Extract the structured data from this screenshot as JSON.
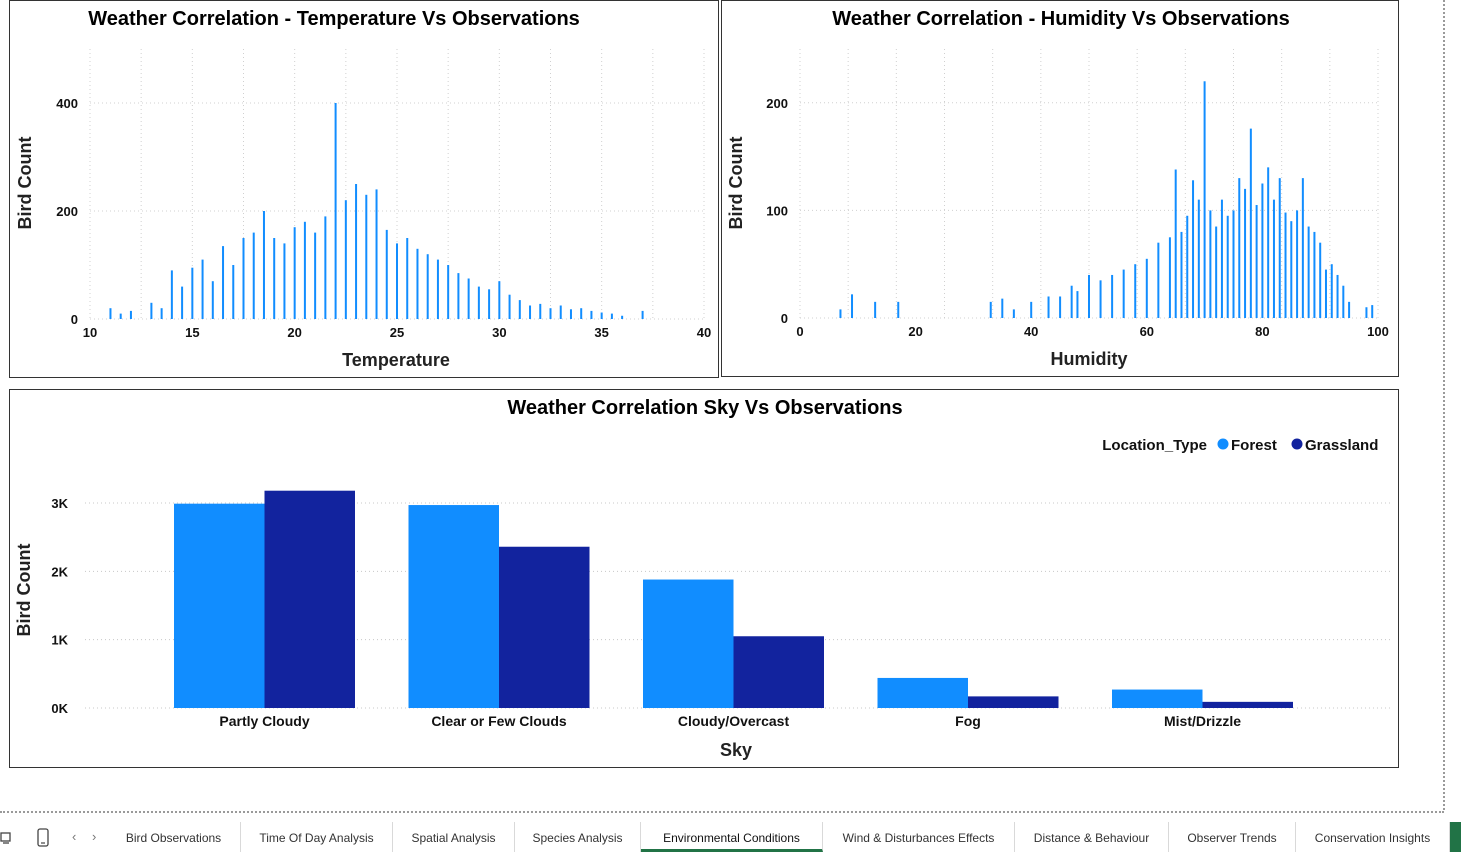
{
  "charts": {
    "temp": {
      "title": "Weather Correlation - Temperature Vs Observations",
      "xlabel": "Temperature",
      "ylabel": "Bird Count"
    },
    "humidity": {
      "title": "Weather Correlation - Humidity Vs Observations",
      "xlabel": "Humidity",
      "ylabel": "Bird Count"
    },
    "sky": {
      "title": "Weather Correlation Sky Vs Observations",
      "xlabel": "Sky",
      "ylabel": "Bird Count",
      "legend_title": "Location_Type"
    }
  },
  "chart_data": [
    {
      "type": "bar",
      "title": "Weather Correlation - Temperature Vs Observations",
      "xlabel": "Temperature",
      "ylabel": "Bird Count",
      "xlim": [
        10,
        40
      ],
      "ylim": [
        0,
        500
      ],
      "xticks": [
        10,
        15,
        20,
        25,
        30,
        35,
        40
      ],
      "yticks": [
        0,
        200,
        400
      ],
      "grid": true,
      "color": "#118dff",
      "x": [
        11,
        11.5,
        12,
        13,
        13.5,
        14,
        14.5,
        15,
        15.5,
        16,
        16.5,
        17,
        17.5,
        18,
        18.5,
        19,
        19.5,
        20,
        20.5,
        21,
        21.5,
        22,
        22.5,
        23,
        23.5,
        24,
        24.5,
        25,
        25.5,
        26,
        26.5,
        27,
        27.5,
        28,
        28.5,
        29,
        29.5,
        30,
        30.5,
        31,
        31.5,
        32,
        32.5,
        33,
        33.5,
        34,
        34.5,
        35,
        35.5,
        36,
        37
      ],
      "values": [
        20,
        10,
        15,
        30,
        20,
        90,
        60,
        95,
        110,
        70,
        135,
        100,
        150,
        160,
        200,
        150,
        140,
        170,
        180,
        160,
        190,
        400,
        220,
        250,
        230,
        240,
        165,
        140,
        150,
        130,
        120,
        110,
        100,
        85,
        75,
        60,
        55,
        70,
        45,
        35,
        25,
        28,
        20,
        25,
        18,
        20,
        15,
        12,
        10,
        6,
        15
      ]
    },
    {
      "type": "bar",
      "title": "Weather Correlation - Humidity Vs Observations",
      "xlabel": "Humidity",
      "ylabel": "Bird Count",
      "xlim": [
        0,
        100
      ],
      "ylim": [
        0,
        250
      ],
      "xticks": [
        0,
        20,
        40,
        60,
        80,
        100
      ],
      "yticks": [
        0,
        100,
        200
      ],
      "grid": true,
      "color": "#118dff",
      "x": [
        7,
        9,
        13,
        17,
        33,
        35,
        37,
        40,
        43,
        45,
        47,
        48,
        50,
        52,
        54,
        56,
        58,
        60,
        62,
        64,
        65,
        66,
        67,
        68,
        69,
        70,
        71,
        72,
        73,
        74,
        75,
        76,
        77,
        78,
        79,
        80,
        81,
        82,
        83,
        84,
        85,
        86,
        87,
        88,
        89,
        90,
        91,
        92,
        93,
        94,
        95,
        98,
        99
      ],
      "values": [
        8,
        22,
        15,
        15,
        15,
        18,
        8,
        15,
        20,
        20,
        30,
        25,
        40,
        35,
        40,
        45,
        50,
        55,
        70,
        75,
        138,
        80,
        95,
        128,
        110,
        220,
        100,
        85,
        110,
        95,
        100,
        130,
        120,
        176,
        105,
        125,
        140,
        110,
        130,
        98,
        90,
        100,
        130,
        85,
        80,
        70,
        45,
        50,
        40,
        30,
        15,
        10,
        12
      ]
    },
    {
      "type": "bar",
      "title": "Weather Correlation Sky Vs Observations",
      "xlabel": "Sky",
      "ylabel": "Bird Count",
      "categories": [
        "Partly Cloudy",
        "Clear or Few Clouds",
        "Cloudy/Overcast",
        "Fog",
        "Mist/Drizzle"
      ],
      "ylim": [
        0,
        3500
      ],
      "yticks": [
        0,
        1000,
        2000,
        3000
      ],
      "ytick_labels": [
        "0K",
        "1K",
        "2K",
        "3K"
      ],
      "legend": {
        "title": "Location_Type",
        "position": "top-right"
      },
      "series": [
        {
          "name": "Forest",
          "color": "#118dff",
          "values": [
            2990,
            2970,
            1880,
            440,
            270
          ]
        },
        {
          "name": "Grassland",
          "color": "#12239e",
          "values": [
            3180,
            2360,
            1050,
            170,
            90
          ]
        }
      ]
    }
  ],
  "tabs": [
    "Bird Observations",
    "Time Of Day Analysis",
    "Spatial Analysis",
    "Species Analysis",
    "Environmental Conditions",
    "Wind & Disturbances Effects",
    "Distance & Behaviour",
    "Observer Trends",
    "Conservation Insights"
  ],
  "active_tab": "Environmental Conditions",
  "nav_icons": [
    "desktop-view-icon",
    "phone-view-icon",
    "prev-page-icon",
    "next-page-icon"
  ]
}
